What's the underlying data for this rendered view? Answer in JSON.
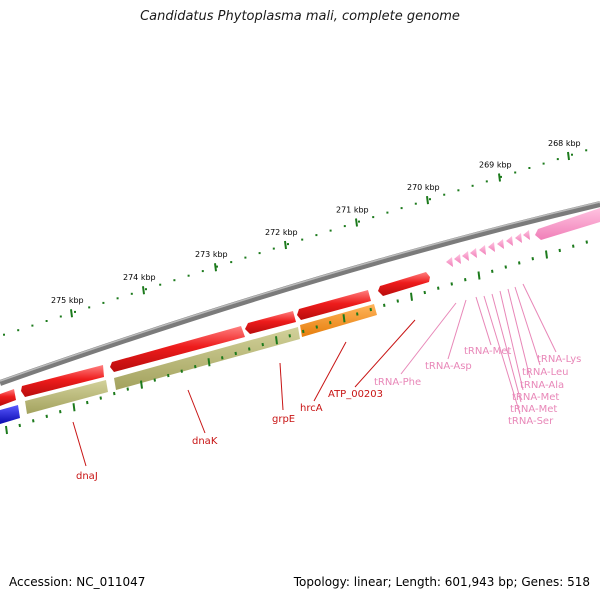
{
  "title": "Candidatus Phytoplasma mali, complete genome",
  "footer": {
    "accession": "Accession: NC_011047",
    "topology": "Topology: linear; Length: 601,943 bp; Genes: 518"
  },
  "colors": {
    "backbone": "#7b7b7b",
    "cds": "#e8231e",
    "cds_highlight": "#ff7070",
    "trna": "#f28fc1",
    "gc_track": "#b8b773",
    "orange_feature": "#f7941d",
    "blue_feature": "#1a1adb",
    "tick": "#1c7a1c",
    "cds_label": "#c81414",
    "trna_label": "#e887b8"
  },
  "ticks": [
    {
      "label": "268 kbp"
    },
    {
      "label": "269 kbp"
    },
    {
      "label": "270 kbp"
    },
    {
      "label": "271 kbp"
    },
    {
      "label": "272 kbp"
    },
    {
      "label": "273 kbp"
    },
    {
      "label": "274 kbp"
    },
    {
      "label": "275 kbp"
    }
  ],
  "genes": [
    {
      "label": "dnaJ",
      "type": "cds"
    },
    {
      "label": "dnaK",
      "type": "cds"
    },
    {
      "label": "grpE",
      "type": "cds"
    },
    {
      "label": "hrcA",
      "type": "cds"
    },
    {
      "label": "ATP_00203",
      "type": "cds"
    },
    {
      "label": "tRNA-Phe",
      "type": "trna"
    },
    {
      "label": "tRNA-Asp",
      "type": "trna"
    },
    {
      "label": "tRNA-Met",
      "type": "trna"
    },
    {
      "label": "tRNA-Lys",
      "type": "trna"
    },
    {
      "label": "tRNA-Leu",
      "type": "trna"
    },
    {
      "label": "tRNA-Ala",
      "type": "trna"
    },
    {
      "label": "tRNA-Met",
      "type": "trna"
    },
    {
      "label": "tRNA-Met",
      "type": "trna"
    },
    {
      "label": "tRNA-Ser",
      "type": "trna"
    }
  ]
}
